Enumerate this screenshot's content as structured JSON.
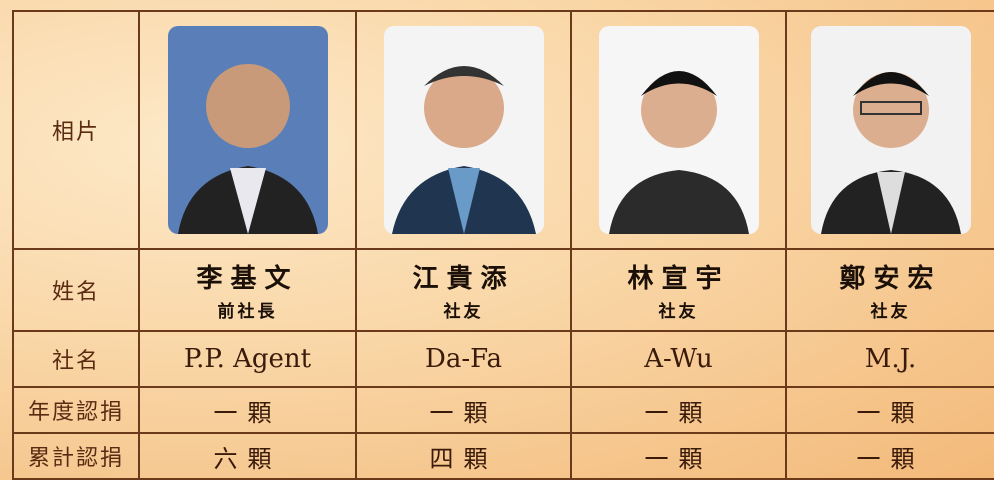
{
  "table": {
    "row_labels": [
      "相片",
      "姓名",
      "社名",
      "年度認捐",
      "累計認捐"
    ],
    "people": [
      {
        "name": "李基文",
        "role": "前社長",
        "nickname": "P.P. Agent",
        "annual": "一顆",
        "total": "六顆"
      },
      {
        "name": "江貴添",
        "role": "社友",
        "nickname": "Da-Fa",
        "annual": "一顆",
        "total": "四顆"
      },
      {
        "name": "林宣宇",
        "role": "社友",
        "nickname": "A-Wu",
        "annual": "一顆",
        "total": "一顆"
      },
      {
        "name": "鄭安宏",
        "role": "社友",
        "nickname": "M.J.",
        "annual": "一顆",
        "total": "一顆"
      }
    ]
  }
}
